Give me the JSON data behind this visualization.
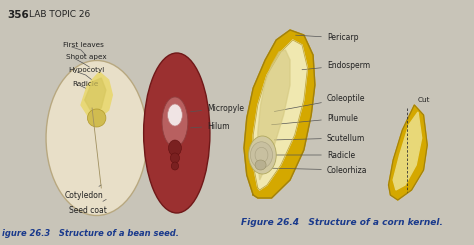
{
  "background_color": "#c8c4b8",
  "page_number": "356",
  "header": "LAB TOPIC 26",
  "fig1_caption": "igure 26.3   Structure of a bean seed.",
  "fig2_caption": "Figure 26.4   Structure of a corn kernel.",
  "text_color": "#222222",
  "caption_color": "#1a3a8c",
  "bean_outer_color": "#e8dfc8",
  "bean_outer_edge": "#b8a880",
  "bean_inner_color": "#9b3030",
  "bean_embryo_color": "#e8d878",
  "bean_embryo_edge": "#c0a830",
  "hilum_color": "#c08080",
  "hilum_inner_color": "#f0e0e0",
  "corn_yellow": "#d4a800",
  "corn_light": "#e8cc60",
  "corn_cream": "#f0e8b0",
  "corn_gray": "#c0b890",
  "cut_corn_color": "#d4a800",
  "cut_corn_inner": "#e8d878"
}
